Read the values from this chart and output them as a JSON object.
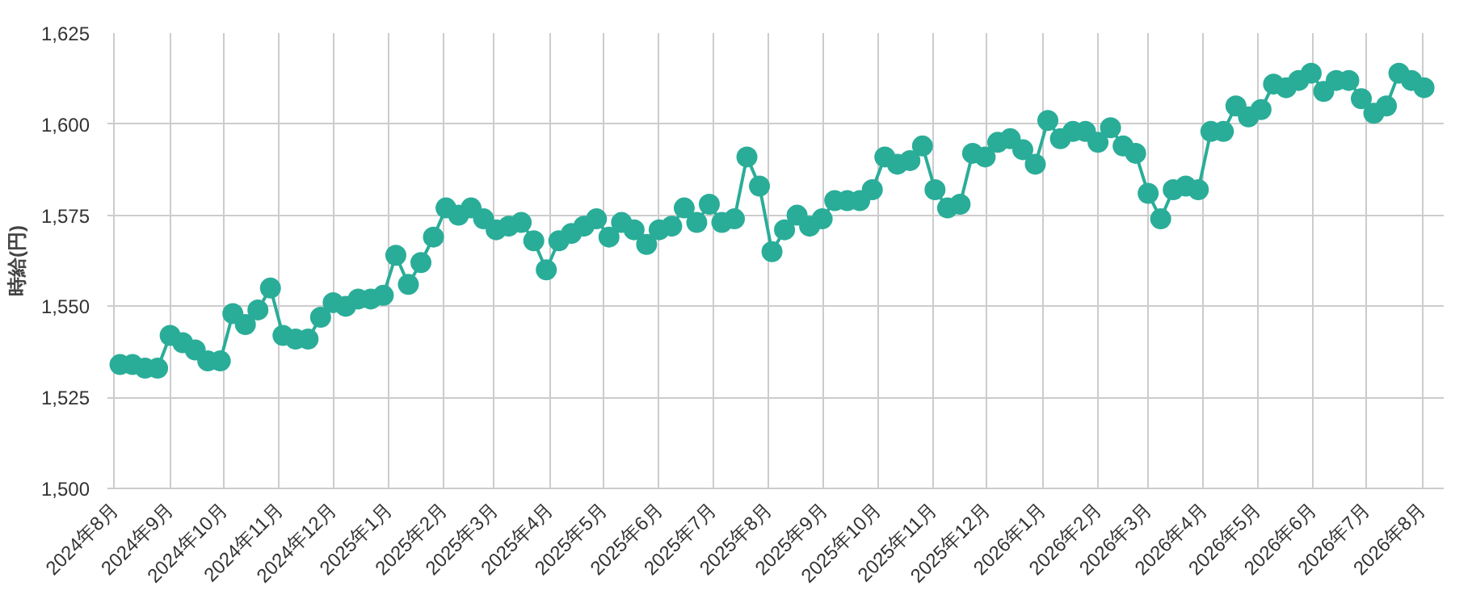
{
  "chart_data": {
    "type": "line",
    "ylabel": "時給(円)",
    "x": [
      "2024-08-04",
      "2024-08-11",
      "2024-08-18",
      "2024-08-25",
      "2024-09-01",
      "2024-09-08",
      "2024-09-15",
      "2024-09-22",
      "2024-09-29",
      "2024-10-06",
      "2024-10-13",
      "2024-10-20",
      "2024-10-27",
      "2024-11-03",
      "2024-11-10",
      "2024-11-17",
      "2024-11-24",
      "2024-12-01",
      "2024-12-08",
      "2024-12-15",
      "2024-12-22",
      "2024-12-29",
      "2025-01-05",
      "2025-01-12",
      "2025-01-19",
      "2025-01-26",
      "2025-02-02",
      "2025-02-09",
      "2025-02-16",
      "2025-02-23",
      "2025-03-02",
      "2025-03-09",
      "2025-03-16",
      "2025-03-23",
      "2025-03-30",
      "2025-04-06",
      "2025-04-13",
      "2025-04-20",
      "2025-04-27",
      "2025-05-04",
      "2025-05-11",
      "2025-05-18",
      "2025-05-25",
      "2025-06-01",
      "2025-06-08",
      "2025-06-15",
      "2025-06-22",
      "2025-06-29",
      "2025-07-06",
      "2025-07-13",
      "2025-07-20",
      "2025-07-27",
      "2025-08-03",
      "2025-08-10",
      "2025-08-17",
      "2025-08-24",
      "2025-08-31",
      "2025-09-07",
      "2025-09-14",
      "2025-09-21",
      "2025-09-28",
      "2025-10-05",
      "2025-10-12",
      "2025-10-19",
      "2025-10-26",
      "2025-11-02",
      "2025-11-09",
      "2025-11-16",
      "2025-11-23",
      "2025-11-30",
      "2025-12-07",
      "2025-12-14",
      "2025-12-21",
      "2025-12-28",
      "2026-01-04",
      "2026-01-11",
      "2026-01-18",
      "2026-01-25",
      "2026-02-01",
      "2026-02-08",
      "2026-02-15",
      "2026-02-22",
      "2026-03-01",
      "2026-03-08",
      "2026-03-15",
      "2026-03-22",
      "2026-03-29",
      "2026-04-05",
      "2026-04-12",
      "2026-04-19",
      "2026-04-26",
      "2026-05-03",
      "2026-05-10",
      "2026-05-17",
      "2026-05-24",
      "2026-05-31",
      "2026-06-07",
      "2026-06-14",
      "2026-06-21",
      "2026-06-28",
      "2026-07-05",
      "2026-07-12",
      "2026-07-19",
      "2026-07-26",
      "2026-08-02"
    ],
    "series": [
      {
        "color": "#2aad98",
        "values": [
          1534,
          1534,
          1533,
          1533,
          1542,
          1540,
          1538,
          1535,
          1535,
          1548,
          1545,
          1549,
          1555,
          1542,
          1541,
          1541,
          1547,
          1551,
          1550,
          1552,
          1552,
          1553,
          1564,
          1556,
          1562,
          1569,
          1577,
          1575,
          1577,
          1574,
          1571,
          1572,
          1573,
          1568,
          1560,
          1568,
          1570,
          1572,
          1574,
          1569,
          1573,
          1571,
          1567,
          1571,
          1572,
          1577,
          1573,
          1578,
          1573,
          1574,
          1591,
          1583,
          1565,
          1571,
          1575,
          1572,
          1574,
          1579,
          1579,
          1579,
          1582,
          1591,
          1589,
          1590,
          1594,
          1582,
          1577,
          1578,
          1592,
          1591,
          1595,
          1596,
          1593,
          1589,
          1601,
          1596,
          1598,
          1598,
          1595,
          1599,
          1594,
          1592,
          1581,
          1574,
          1582,
          1583,
          1582,
          1598,
          1598,
          1605,
          1602,
          1604,
          1611,
          1610,
          1612,
          1614,
          1609,
          1612,
          1612,
          1607,
          1603,
          1605,
          1614,
          1612,
          1610
        ]
      }
    ],
    "xlim": [
      "2024-07-28",
      "2026-08-13"
    ],
    "xticks": [
      {
        "value": "2024-08-01",
        "label": "2024年8月"
      },
      {
        "value": "2024-09-01",
        "label": "2024年9月"
      },
      {
        "value": "2024-10-01",
        "label": "2024年10月"
      },
      {
        "value": "2024-11-01",
        "label": "2024年11月"
      },
      {
        "value": "2024-12-01",
        "label": "2024年12月"
      },
      {
        "value": "2025-01-01",
        "label": "2025年1月"
      },
      {
        "value": "2025-02-01",
        "label": "2025年2月"
      },
      {
        "value": "2025-03-01",
        "label": "2025年3月"
      },
      {
        "value": "2025-04-01",
        "label": "2025年4月"
      },
      {
        "value": "2025-05-01",
        "label": "2025年5月"
      },
      {
        "value": "2025-06-01",
        "label": "2025年6月"
      },
      {
        "value": "2025-07-01",
        "label": "2025年7月"
      },
      {
        "value": "2025-08-01",
        "label": "2025年8月"
      },
      {
        "value": "2025-09-01",
        "label": "2025年9月"
      },
      {
        "value": "2025-10-01",
        "label": "2025年10月"
      },
      {
        "value": "2025-11-01",
        "label": "2025年11月"
      },
      {
        "value": "2025-12-01",
        "label": "2025年12月"
      },
      {
        "value": "2026-01-01",
        "label": "2026年1月"
      },
      {
        "value": "2026-02-01",
        "label": "2026年2月"
      },
      {
        "value": "2026-03-01",
        "label": "2026年3月"
      },
      {
        "value": "2026-04-01",
        "label": "2026年4月"
      },
      {
        "value": "2026-05-01",
        "label": "2026年5月"
      },
      {
        "value": "2026-06-01",
        "label": "2026年6月"
      },
      {
        "value": "2026-07-01",
        "label": "2026年7月"
      },
      {
        "value": "2026-08-01",
        "label": "2026年8月"
      }
    ],
    "ylim": [
      1500,
      1625
    ],
    "yticks": [
      {
        "value": 1500,
        "label": "1,500"
      },
      {
        "value": 1525,
        "label": "1,525"
      },
      {
        "value": 1550,
        "label": "1,550"
      },
      {
        "value": 1575,
        "label": "1,575"
      },
      {
        "value": 1600,
        "label": "1,600"
      },
      {
        "value": 1625,
        "label": "1,625"
      }
    ],
    "grid": true,
    "marker": "circle",
    "line_style": "solid"
  }
}
